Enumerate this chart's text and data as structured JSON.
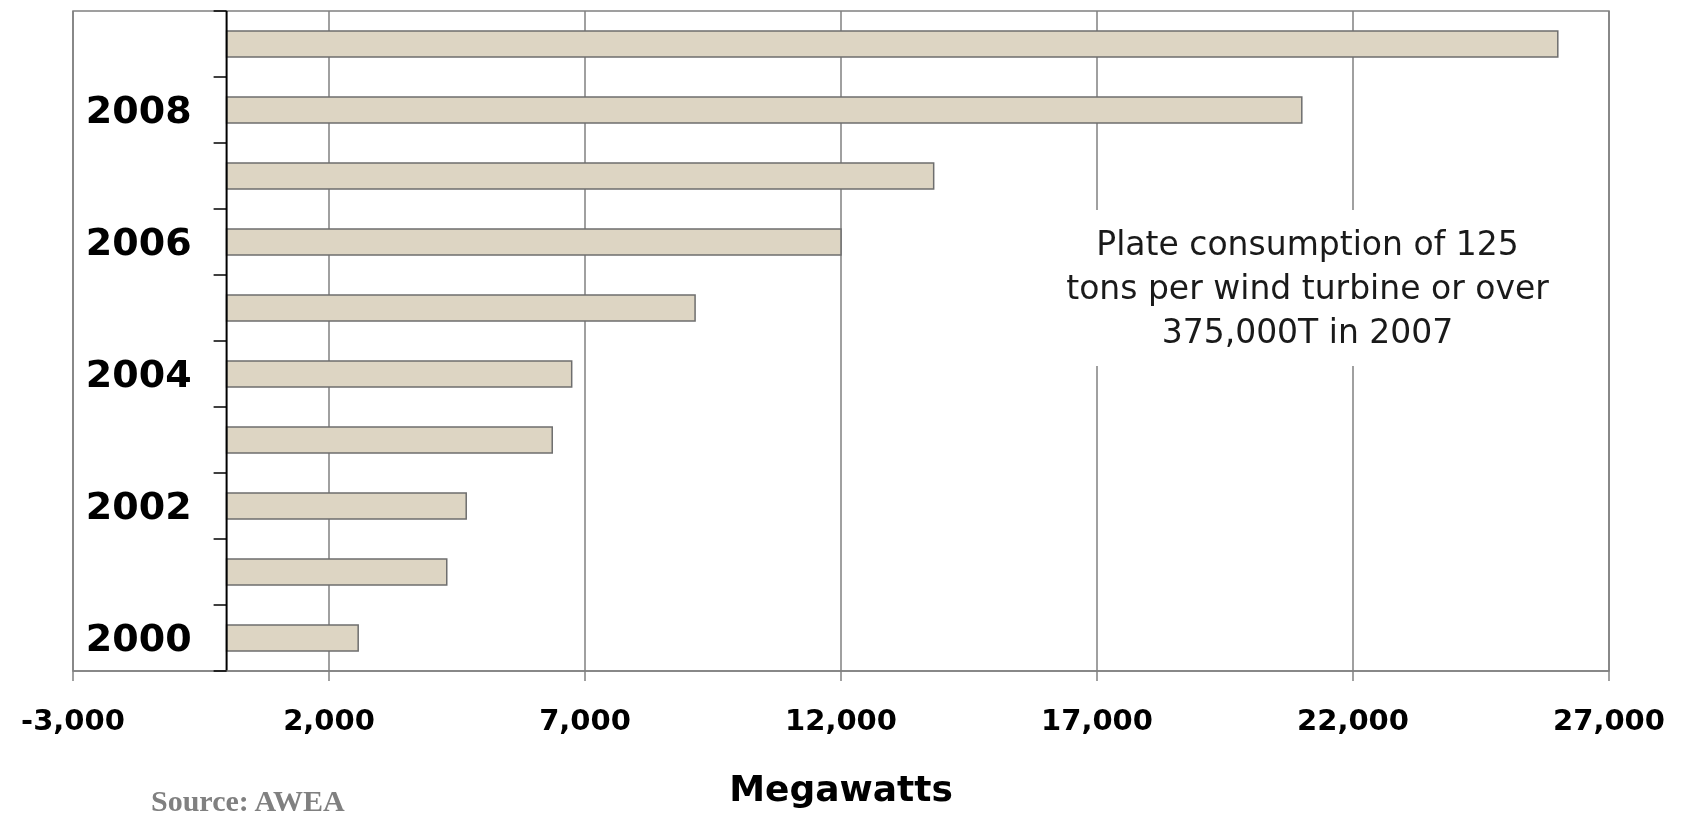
{
  "chart_data": {
    "type": "bar",
    "orientation": "horizontal",
    "categories": [
      null,
      "2008",
      null,
      "2006",
      null,
      "2004",
      null,
      "2002",
      null,
      "2000"
    ],
    "values": [
      26000,
      21000,
      13810,
      12000,
      9150,
      6740,
      6360,
      4680,
      4300,
      2570
    ],
    "color": "#ddd5c3",
    "xlim": [
      -3000,
      27000
    ],
    "xticks": [
      {
        "value": -3000,
        "label": "-3,000"
      },
      {
        "value": 2000,
        "label": "2,000"
      },
      {
        "value": 7000,
        "label": "7,000"
      },
      {
        "value": 12000,
        "label": "12,000"
      },
      {
        "value": 17000,
        "label": "17,000"
      },
      {
        "value": 22000,
        "label": "22,000"
      },
      {
        "value": 27000,
        "label": "27,000"
      }
    ],
    "xlabel": "Megawatts",
    "grid": "x",
    "ref_lines": [
      {
        "axis": "x",
        "value": 0,
        "color": "#000000"
      }
    ],
    "annotations": [
      "Plate consumption of 125 tons per wind turbine or over 375,000T in 2007",
      "Source: AWEA"
    ]
  }
}
